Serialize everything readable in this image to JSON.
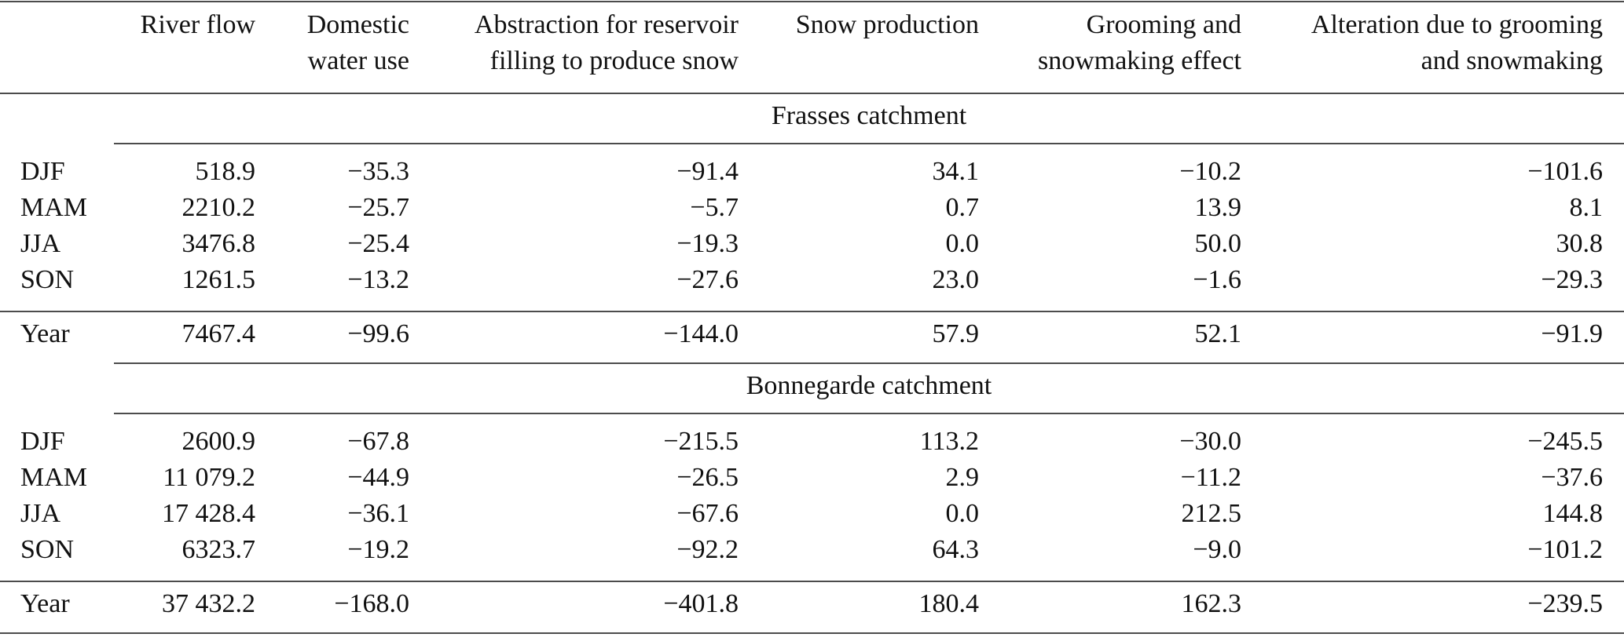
{
  "table": {
    "columns": [
      [
        "River flow"
      ],
      [
        "Domestic",
        "water use"
      ],
      [
        "Abstraction for reservoir",
        "filling to produce snow"
      ],
      [
        "Snow production"
      ],
      [
        "Grooming and",
        "snowmaking effect"
      ],
      [
        "Alteration due to grooming",
        "and snowmaking"
      ]
    ],
    "sections": [
      {
        "title": "Frasses catchment",
        "rows": [
          [
            "DJF",
            "518.9",
            "−35.3",
            "−91.4",
            "34.1",
            "−10.2",
            "−101.6"
          ],
          [
            "MAM",
            "2210.2",
            "−25.7",
            "−5.7",
            "0.7",
            "13.9",
            "8.1"
          ],
          [
            "JJA",
            "3476.8",
            "−25.4",
            "−19.3",
            "0.0",
            "50.0",
            "30.8"
          ],
          [
            "SON",
            "1261.5",
            "−13.2",
            "−27.6",
            "23.0",
            "−1.6",
            "−29.3"
          ],
          [
            "Year",
            "7467.4",
            "−99.6",
            "−144.0",
            "57.9",
            "52.1",
            "−91.9"
          ]
        ]
      },
      {
        "title": "Bonnegarde catchment",
        "rows": [
          [
            "DJF",
            "2600.9",
            "−67.8",
            "−215.5",
            "113.2",
            "−30.0",
            "−245.5"
          ],
          [
            "MAM",
            "11 079.2",
            "−44.9",
            "−26.5",
            "2.9",
            "−11.2",
            "−37.6"
          ],
          [
            "JJA",
            "17 428.4",
            "−36.1",
            "−67.6",
            "0.0",
            "212.5",
            "144.8"
          ],
          [
            "SON",
            "6323.7",
            "−19.2",
            "−92.2",
            "64.3",
            "−9.0",
            "−101.2"
          ],
          [
            "Year",
            "37 432.2",
            "−168.0",
            "−401.8",
            "180.4",
            "162.3",
            "−239.5"
          ]
        ]
      }
    ]
  }
}
